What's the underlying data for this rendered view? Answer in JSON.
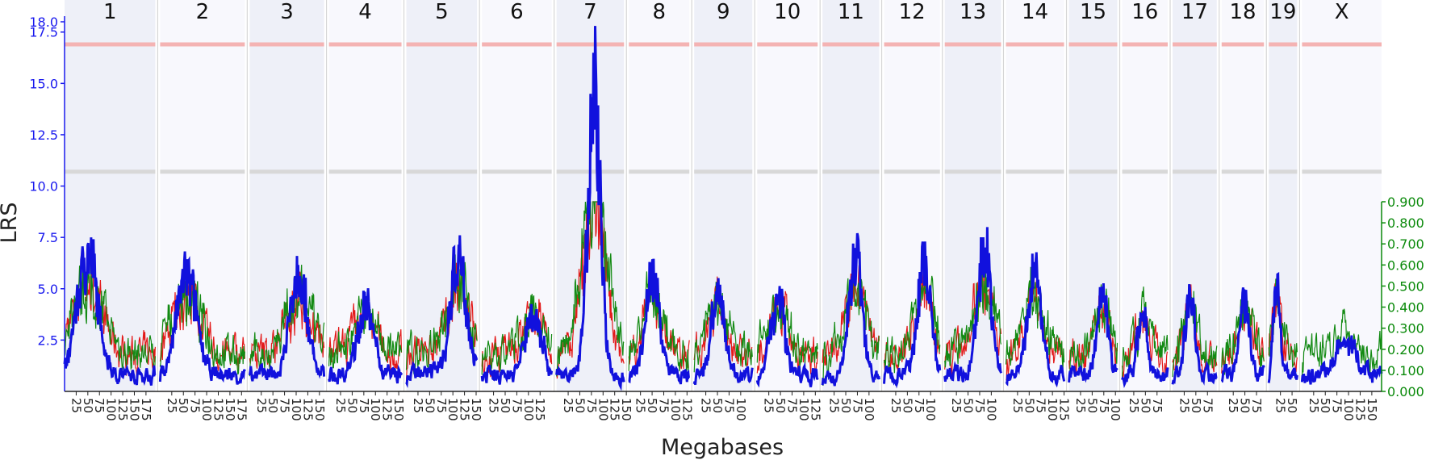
{
  "chart_data": {
    "type": "line",
    "title": "",
    "xlabel": "Megabases",
    "ylabel": "LRS",
    "y_left": {
      "range": [
        0,
        18.0
      ],
      "ticks": [
        2.5,
        5.0,
        7.5,
        10.0,
        12.5,
        15.0,
        17.5,
        18.0
      ],
      "tick_labels": [
        "2.5",
        "5.0",
        "7.5",
        "10.0",
        "12.5",
        "15.0",
        "17.5",
        "18.0"
      ],
      "color": "#1a1aee"
    },
    "y_right": {
      "range": [
        0,
        0.9
      ],
      "ticks": [
        0.0,
        0.1,
        0.2,
        0.3,
        0.4,
        0.5,
        0.6,
        0.7,
        0.8,
        0.9
      ],
      "tick_labels": [
        "0.000",
        "0.100",
        "0.200",
        "0.300",
        "0.400",
        "0.500",
        "0.600",
        "0.700",
        "0.800",
        "0.900"
      ],
      "color": "#0b8a0b"
    },
    "thresholds": [
      {
        "name": "significant",
        "value": 16.9,
        "color": "#f4b3b3"
      },
      {
        "name": "suggestive",
        "value": 10.7,
        "color": "#d8d8d8"
      }
    ],
    "chromosomes": [
      {
        "name": "1",
        "len": 195,
        "ticks": [
          "25",
          "50",
          "75",
          "100",
          "125",
          "150",
          "175"
        ],
        "peak": 7.5
      },
      {
        "name": "2",
        "len": 182,
        "ticks": [
          "25",
          "50",
          "75",
          "100",
          "125",
          "150",
          "175"
        ],
        "peak": 6.3
      },
      {
        "name": "3",
        "len": 160,
        "ticks": [
          "25",
          "50",
          "75",
          "100",
          "125",
          "150"
        ],
        "peak": 6.6
      },
      {
        "name": "4",
        "len": 156,
        "ticks": [
          "25",
          "50",
          "75",
          "100",
          "125",
          "150"
        ],
        "peak": 4.3
      },
      {
        "name": "5",
        "len": 152,
        "ticks": [
          "25",
          "50",
          "75",
          "100",
          "125",
          "150"
        ],
        "peak": 7.6
      },
      {
        "name": "6",
        "len": 150,
        "ticks": [
          "25",
          "50",
          "75",
          "100",
          "125"
        ],
        "peak": 4.0
      },
      {
        "name": "7",
        "len": 145,
        "ticks": [
          "25",
          "50",
          "75",
          "100",
          "125",
          "150"
        ],
        "peak": 17.8
      },
      {
        "name": "8",
        "len": 130,
        "ticks": [
          "25",
          "50",
          "75",
          "100",
          "125"
        ],
        "peak": 6.3
      },
      {
        "name": "9",
        "len": 125,
        "ticks": [
          "25",
          "50",
          "75",
          "100"
        ],
        "peak": 5.3
      },
      {
        "name": "10",
        "len": 130,
        "ticks": [
          "25",
          "50",
          "75",
          "100",
          "125"
        ],
        "peak": 5.0
      },
      {
        "name": "11",
        "len": 122,
        "ticks": [
          "25",
          "50",
          "75",
          "100"
        ],
        "peak": 7.7
      },
      {
        "name": "12",
        "len": 120,
        "ticks": [
          "25",
          "50",
          "75",
          "100"
        ],
        "peak": 7.3
      },
      {
        "name": "13",
        "len": 121,
        "ticks": [
          "25",
          "50",
          "75",
          "100"
        ],
        "peak": 8.0
      },
      {
        "name": "14",
        "len": 125,
        "ticks": [
          "25",
          "50",
          "75",
          "100",
          "125"
        ],
        "peak": 6.3
      },
      {
        "name": "15",
        "len": 104,
        "ticks": [
          "25",
          "50",
          "75",
          "100"
        ],
        "peak": 5.1
      },
      {
        "name": "16",
        "len": 98,
        "ticks": [
          "25",
          "50",
          "75"
        ],
        "peak": 3.8
      },
      {
        "name": "17",
        "len": 95,
        "ticks": [
          "25",
          "50",
          "75"
        ],
        "peak": 5.0
      },
      {
        "name": "18",
        "len": 91,
        "ticks": [
          "25",
          "50",
          "75"
        ],
        "peak": 4.8
      },
      {
        "name": "19",
        "len": 61,
        "ticks": [
          "25",
          "50"
        ],
        "peak": 5.7
      },
      {
        "name": "X",
        "len": 171,
        "ticks": [
          "25",
          "50",
          "75",
          "100",
          "125",
          "150"
        ],
        "peak": 2.5
      }
    ],
    "series": [
      {
        "role": "LRS main",
        "color": "#1111dd",
        "axis": "left"
      },
      {
        "role": "additive effect (red)",
        "color": "#e31a1a",
        "axis": "right"
      },
      {
        "role": "additive effect (green)",
        "color": "#138a13",
        "axis": "right"
      }
    ],
    "grid": false,
    "legend": "none"
  }
}
